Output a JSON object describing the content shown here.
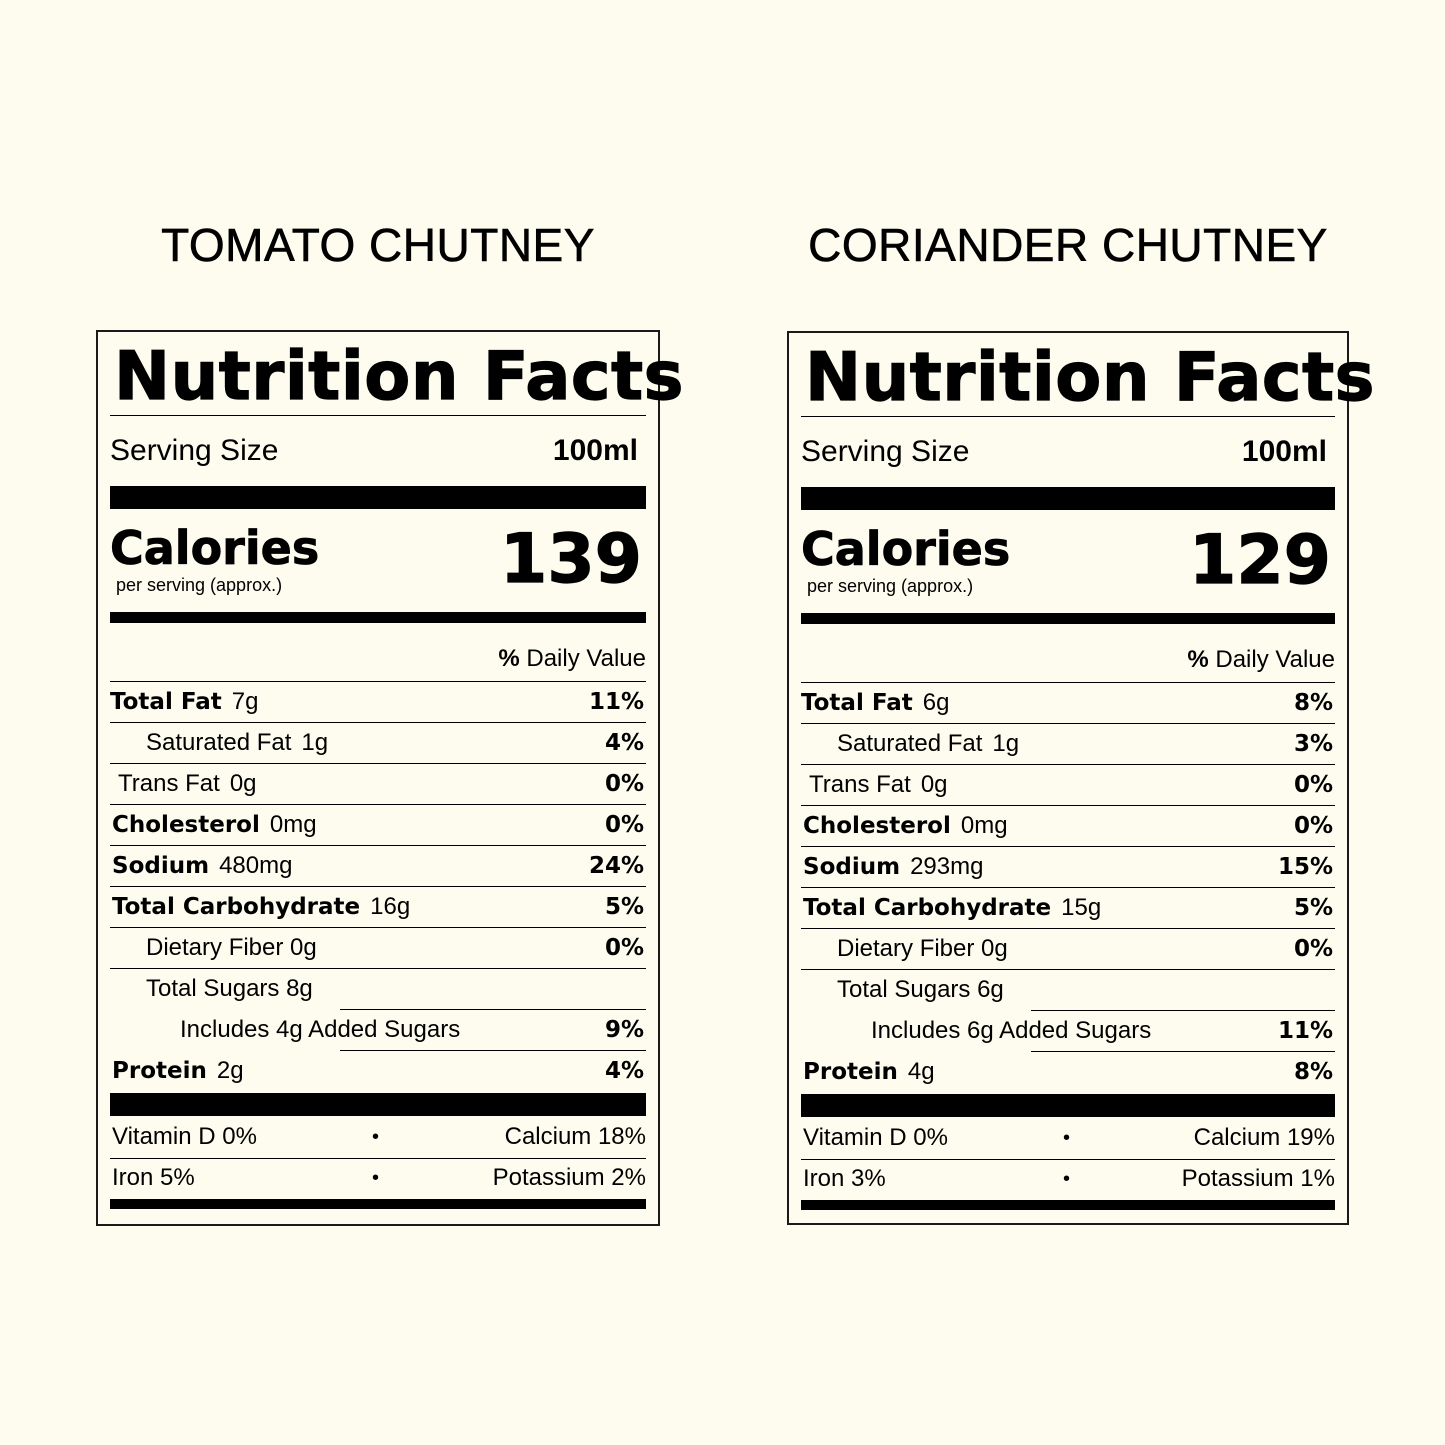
{
  "labels": [
    {
      "product": "TOMATO CHUTNEY",
      "heading": "Nutrition Facts",
      "serving_size_label": "Serving Size",
      "serving_size": "100ml",
      "calories_label": "Calories",
      "calories_sub": "per serving (approx.)",
      "calories": "139",
      "dv_pct": "%",
      "dv_text": "Daily Value",
      "nutrients": [
        {
          "name": "Total Fat",
          "amount": "7g",
          "pct": "11%"
        },
        {
          "name": "Saturated Fat",
          "amount": "1g",
          "pct": "4%"
        },
        {
          "name": "Trans Fat",
          "amount": "0g",
          "pct": "0%"
        },
        {
          "name": "Cholesterol",
          "amount": "0mg",
          "pct": "0%"
        },
        {
          "name": "Sodium",
          "amount": "480mg",
          "pct": "24%"
        },
        {
          "name": "Total Carbohydrate",
          "amount": "16g",
          "pct": "5%"
        },
        {
          "name": "Dietary Fiber 0g",
          "amount": "",
          "pct": "0%"
        },
        {
          "name": "Total Sugars 8g",
          "amount": "",
          "pct": ""
        },
        {
          "name": "Includes 4g Added Sugars",
          "amount": "",
          "pct": "9%"
        },
        {
          "name": "Protein",
          "amount": "2g",
          "pct": "4%"
        }
      ],
      "vitamins": [
        {
          "left": "Vitamin D  0%",
          "right": "Calcium  18%"
        },
        {
          "left": "Iron  5%",
          "right": "Potassium 2%"
        }
      ]
    },
    {
      "product": "CORIANDER CHUTNEY",
      "heading": "Nutrition Facts",
      "serving_size_label": "Serving Size",
      "serving_size": "100ml",
      "calories_label": "Calories",
      "calories_sub": "per serving (approx.)",
      "calories": "129",
      "dv_pct": "%",
      "dv_text": "Daily Value",
      "nutrients": [
        {
          "name": "Total Fat",
          "amount": "6g",
          "pct": "8%"
        },
        {
          "name": "Saturated Fat",
          "amount": "1g",
          "pct": "3%"
        },
        {
          "name": "Trans Fat",
          "amount": "0g",
          "pct": "0%"
        },
        {
          "name": "Cholesterol",
          "amount": "0mg",
          "pct": "0%"
        },
        {
          "name": "Sodium",
          "amount": "293mg",
          "pct": "15%"
        },
        {
          "name": "Total Carbohydrate",
          "amount": "15g",
          "pct": "5%"
        },
        {
          "name": "Dietary Fiber 0g",
          "amount": "",
          "pct": "0%"
        },
        {
          "name": "Total Sugars 6g",
          "amount": "",
          "pct": ""
        },
        {
          "name": "Includes 6g Added Sugars",
          "amount": "",
          "pct": "11%"
        },
        {
          "name": "Protein",
          "amount": "4g",
          "pct": "8%"
        }
      ],
      "vitamins": [
        {
          "left": "Vitamin D  0%",
          "right": "Calcium  19%"
        },
        {
          "left": "Iron  3%",
          "right": "Potassium 1%"
        }
      ]
    }
  ]
}
